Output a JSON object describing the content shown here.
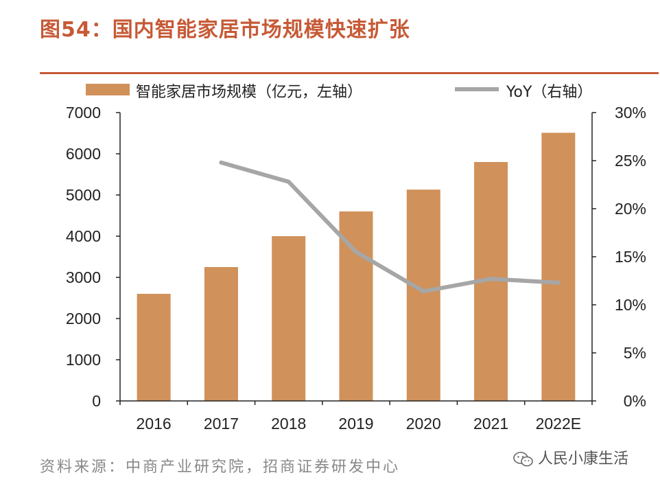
{
  "header": {
    "title": "图54：国内智能家居市场规模快速扩张"
  },
  "legend": {
    "bar_label": "智能家居市场规模（亿元，左轴）",
    "line_label": "YoY（右轴）"
  },
  "footer": {
    "source": "资料来源：中商产业研究院，招商证券研发中心",
    "watermark": "人民小康生活",
    "watermark_icon": "wechat-icon"
  },
  "colors": {
    "accent": "#C65A36",
    "bar": "#D0915A",
    "line": "#A6A6A6"
  },
  "chart_data": {
    "type": "bar",
    "categories": [
      "2016",
      "2017",
      "2018",
      "2019",
      "2020",
      "2021",
      "2022E"
    ],
    "series": [
      {
        "name": "智能家居市场规模（亿元，左轴）",
        "type": "bar",
        "axis": "left",
        "values": [
          2600,
          3250,
          4000,
          4600,
          5130,
          5800,
          6510
        ]
      },
      {
        "name": "YoY（右轴）",
        "type": "line",
        "axis": "right",
        "values": [
          null,
          0.248,
          0.228,
          0.155,
          0.114,
          0.127,
          0.123
        ]
      }
    ],
    "y_left": {
      "ylim": [
        0,
        7000
      ],
      "ticks": [
        "0",
        "1000",
        "2000",
        "3000",
        "4000",
        "5000",
        "6000",
        "7000"
      ]
    },
    "y_right": {
      "ylim": [
        0,
        0.3
      ],
      "ticks": [
        "0%",
        "5%",
        "10%",
        "15%",
        "20%",
        "25%",
        "30%"
      ]
    },
    "grid": false,
    "legend_position": "top"
  }
}
